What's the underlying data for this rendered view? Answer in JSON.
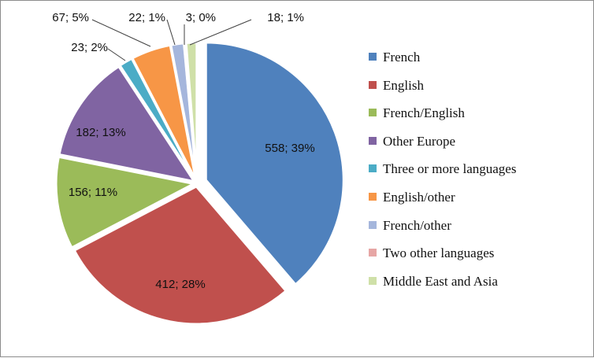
{
  "chart_data": {
    "type": "pie",
    "title": "",
    "legend_position": "right",
    "slices": [
      {
        "label": "French",
        "value": 558,
        "percent": "39%",
        "data_label": "558; 39%",
        "color": "#4f81bd",
        "exploded": true
      },
      {
        "label": "English",
        "value": 412,
        "percent": "28%",
        "data_label": "412; 28%",
        "color": "#c0504d",
        "exploded": false
      },
      {
        "label": "French/English",
        "value": 156,
        "percent": "11%",
        "data_label": "156; 11%",
        "color": "#9bbb59",
        "exploded": false
      },
      {
        "label": "Other Europe",
        "value": 182,
        "percent": "13%",
        "data_label": "182; 13%",
        "color": "#8064a2",
        "exploded": false
      },
      {
        "label": "Three or more languages",
        "value": 23,
        "percent": "2%",
        "data_label": "23; 2%",
        "color": "#4bacc6",
        "exploded": false
      },
      {
        "label": "English/other",
        "value": 67,
        "percent": "5%",
        "data_label": "67; 5%",
        "color": "#f79646",
        "exploded": false
      },
      {
        "label": "French/other",
        "value": 22,
        "percent": "1%",
        "data_label": "22; 1%",
        "color": "#a5b6dc",
        "exploded": false
      },
      {
        "label": "Two other languages",
        "value": 3,
        "percent": "0%",
        "data_label": "3; 0%",
        "color": "#e6a6a5",
        "exploded": false
      },
      {
        "label": "Middle East and Asia",
        "value": 18,
        "percent": "1%",
        "data_label": "18; 1%",
        "color": "#cfe0a8",
        "exploded": false
      }
    ]
  }
}
